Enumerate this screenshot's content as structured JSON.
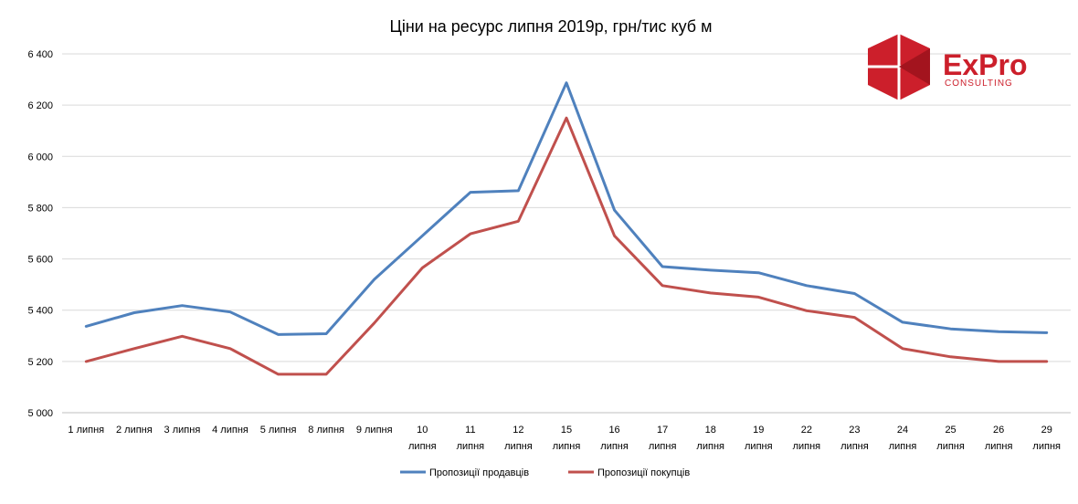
{
  "chart_data": {
    "type": "line",
    "title": "Ціни на ресурс липня 2019р, грн/тис куб м",
    "xlabel": "",
    "ylabel": "",
    "categories": [
      "1 липня",
      "2 липня",
      "3 липня",
      "4 липня",
      "5 липня",
      "8 липня",
      "9 липня",
      "10 липня",
      "11 липня",
      "12 липня",
      "15 липня",
      "16 липня",
      "17 липня",
      "18 липня",
      "19 липня",
      "22 липня",
      "23 липня",
      "24 липня",
      "25 липня",
      "26 липня",
      "29 липня"
    ],
    "category_lines": [
      [
        "1 липня"
      ],
      [
        "2 липня"
      ],
      [
        "3 липня"
      ],
      [
        "4 липня"
      ],
      [
        "5 липня"
      ],
      [
        "8 липня"
      ],
      [
        "9 липня"
      ],
      [
        "10",
        "липня"
      ],
      [
        "11",
        "липня"
      ],
      [
        "12",
        "липня"
      ],
      [
        "15",
        "липня"
      ],
      [
        "16",
        "липня"
      ],
      [
        "17",
        "липня"
      ],
      [
        "18",
        "липня"
      ],
      [
        "19",
        "липня"
      ],
      [
        "22",
        "липня"
      ],
      [
        "23",
        "липня"
      ],
      [
        "24",
        "липня"
      ],
      [
        "25",
        "липня"
      ],
      [
        "26",
        "липня"
      ],
      [
        "29",
        "липня"
      ]
    ],
    "ylim": [
      5000,
      6400
    ],
    "yticks": [
      5000,
      5200,
      5400,
      5600,
      5800,
      6000,
      6200,
      6400
    ],
    "ytick_labels": [
      "5 000",
      "5 200",
      "5 400",
      "5 600",
      "5 800",
      "6 000",
      "6 200",
      "6 400"
    ],
    "grid": true,
    "legend_position": "bottom",
    "series": [
      {
        "name": "Пропозиції продавців",
        "color": "#4f81bd",
        "values": [
          5337,
          5390,
          5418,
          5393,
          5305,
          5308,
          5520,
          5690,
          5860,
          5866,
          6287,
          5790,
          5570,
          5556,
          5546,
          5496,
          5465,
          5353,
          5327,
          5316,
          5312
        ]
      },
      {
        "name": "Пропозиції покупців",
        "color": "#c0504d",
        "values": [
          5200,
          5250,
          5298,
          5250,
          5150,
          5150,
          5350,
          5565,
          5698,
          5747,
          6150,
          5690,
          5496,
          5467,
          5451,
          5398,
          5372,
          5250,
          5218,
          5200,
          5200
        ]
      }
    ]
  },
  "logo": {
    "name": "ExPro",
    "subtitle": "CONSULTING",
    "color": "#cc1f2b"
  }
}
